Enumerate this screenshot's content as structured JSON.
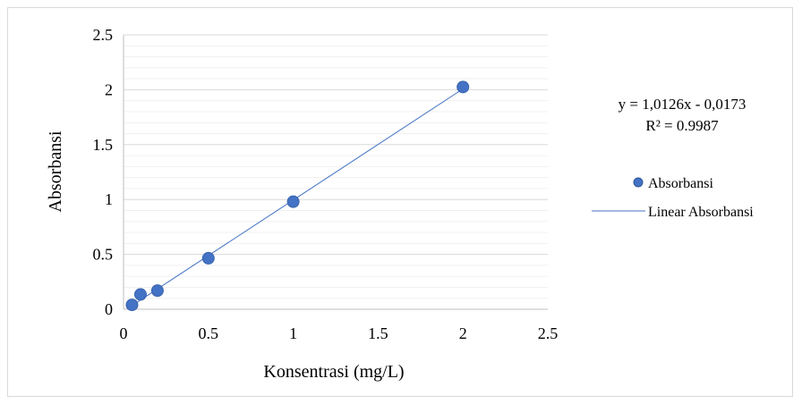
{
  "chart_data": {
    "type": "scatter",
    "title": "",
    "xlabel": "Konsentrasi (mg/L)",
    "ylabel": "Absorbansi",
    "xlim": [
      0,
      2.5
    ],
    "ylim": [
      0,
      2.5
    ],
    "x_ticks": [
      "0",
      "0.5",
      "1",
      "1.5",
      "2",
      "2.5"
    ],
    "y_ticks": [
      "0",
      "0.5",
      "1",
      "1.5",
      "2",
      "2.5"
    ],
    "grid": true,
    "series": [
      {
        "name": "Absorbansi",
        "type": "scatter",
        "color": "#4472C4",
        "x": [
          0.05,
          0.1,
          0.2,
          0.5,
          1,
          2
        ],
        "y": [
          0.04,
          0.135,
          0.17,
          0.465,
          0.98,
          2.025
        ]
      },
      {
        "name": "Linear Absorbansi",
        "type": "trendline",
        "color": "#4472C4",
        "slope": 1.0126,
        "intercept": -0.0173
      }
    ],
    "equation": "y = 1,0126x - 0,0173",
    "r_squared": "R² = 0.9987",
    "legend_position": "right"
  }
}
